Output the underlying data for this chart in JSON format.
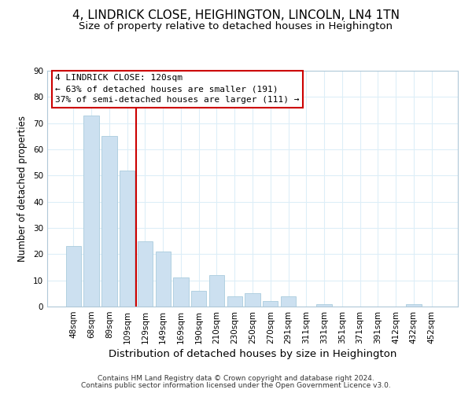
{
  "title": "4, LINDRICK CLOSE, HEIGHINGTON, LINCOLN, LN4 1TN",
  "subtitle": "Size of property relative to detached houses in Heighington",
  "xlabel": "Distribution of detached houses by size in Heighington",
  "ylabel": "Number of detached properties",
  "bar_labels": [
    "48sqm",
    "68sqm",
    "89sqm",
    "109sqm",
    "129sqm",
    "149sqm",
    "169sqm",
    "190sqm",
    "210sqm",
    "230sqm",
    "250sqm",
    "270sqm",
    "291sqm",
    "311sqm",
    "331sqm",
    "351sqm",
    "371sqm",
    "391sqm",
    "412sqm",
    "432sqm",
    "452sqm"
  ],
  "bar_values": [
    23,
    73,
    65,
    52,
    25,
    21,
    11,
    6,
    12,
    4,
    5,
    2,
    4,
    0,
    1,
    0,
    0,
    0,
    0,
    1,
    0
  ],
  "bar_color": "#cce0f0",
  "bar_edge_color": "#aaccdd",
  "grid_color": "#ddeef8",
  "vline_x": 3.5,
  "vline_color": "#cc0000",
  "annotation_title": "4 LINDRICK CLOSE: 120sqm",
  "annotation_line1": "← 63% of detached houses are smaller (191)",
  "annotation_line2": "37% of semi-detached houses are larger (111) →",
  "annotation_box_color": "#ffffff",
  "annotation_box_edge": "#cc0000",
  "ylim": [
    0,
    90
  ],
  "yticks": [
    0,
    10,
    20,
    30,
    40,
    50,
    60,
    70,
    80,
    90
  ],
  "footer1": "Contains HM Land Registry data © Crown copyright and database right 2024.",
  "footer2": "Contains public sector information licensed under the Open Government Licence v3.0.",
  "title_fontsize": 11,
  "subtitle_fontsize": 9.5,
  "xlabel_fontsize": 9.5,
  "ylabel_fontsize": 8.5,
  "tick_fontsize": 7.5,
  "annotation_fontsize": 8,
  "footer_fontsize": 6.5
}
